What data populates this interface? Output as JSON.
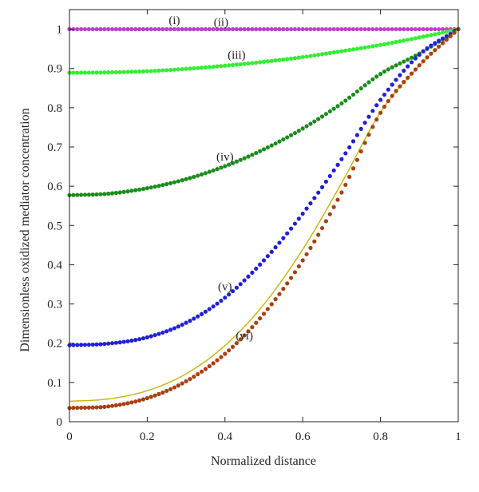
{
  "chart_data": {
    "type": "line",
    "xlabel": "Normalized distance",
    "ylabel": "Dimensionless oxidized mediator concentration",
    "xlim": [
      0,
      1
    ],
    "ylim": [
      0,
      1.05
    ],
    "xticks": [
      "0",
      "0.2",
      "0.4",
      "0.6",
      "0.8",
      "1"
    ],
    "yticks": [
      "0",
      "0.1",
      "0.2",
      "0.3",
      "0.4",
      "0.5",
      "0.6",
      "0.7",
      "0.8",
      "0.9",
      "1"
    ],
    "grid": false,
    "x": [
      0,
      0.1,
      0.2,
      0.3,
      0.4,
      0.5,
      0.6,
      0.7,
      0.8,
      0.9,
      1.0
    ],
    "series": [
      {
        "name": "(i)",
        "style": "dots",
        "color": "#00c0d0",
        "xmax": 0.6,
        "values": [
          1.0,
          1.0,
          1.0,
          1.0,
          1.0,
          1.0,
          1.0,
          1.0,
          1.0,
          1.0,
          1.0
        ]
      },
      {
        "name": "(ii)",
        "style": "dots",
        "color": "#c040c8",
        "values": [
          1.0,
          1.0,
          1.0,
          1.0,
          1.0,
          1.0,
          1.0,
          1.0,
          1.0,
          1.0,
          1.0
        ]
      },
      {
        "name": "(iii)",
        "style": "dots",
        "color": "#33ee33",
        "values": [
          0.889,
          0.89,
          0.893,
          0.899,
          0.907,
          0.917,
          0.929,
          0.944,
          0.96,
          0.979,
          1.0
        ]
      },
      {
        "name": "(iv)",
        "style": "dots",
        "color": "#1a8c1a",
        "values": [
          0.577,
          0.581,
          0.595,
          0.618,
          0.651,
          0.694,
          0.747,
          0.811,
          0.886,
          0.938,
          1.0
        ]
      },
      {
        "name": "(v)",
        "style": "dots",
        "color": "#2020d8",
        "values": [
          0.195,
          0.199,
          0.215,
          0.252,
          0.316,
          0.411,
          0.53,
          0.669,
          0.82,
          0.935,
          1.0
        ]
      },
      {
        "name": "",
        "style": "line",
        "color": "#c8b400",
        "values": [
          0.052,
          0.058,
          0.079,
          0.122,
          0.194,
          0.299,
          0.439,
          0.608,
          0.788,
          0.907,
          1.0
        ]
      },
      {
        "name": "(vi)",
        "style": "dots",
        "color": "#a84010",
        "values": [
          0.035,
          0.039,
          0.06,
          0.103,
          0.173,
          0.275,
          0.411,
          0.584,
          0.787,
          0.908,
          1.0
        ]
      }
    ],
    "annotations": [
      {
        "text": "(i)",
        "x": 0.27,
        "y": 1.013
      },
      {
        "text": "(ii)",
        "x": 0.39,
        "y": 1.008
      },
      {
        "text": "(iii)",
        "x": 0.43,
        "y": 0.925
      },
      {
        "text": "(iv)",
        "x": 0.4,
        "y": 0.665
      },
      {
        "text": "(v)",
        "x": 0.4,
        "y": 0.335
      },
      {
        "text": "(vi)",
        "x": 0.45,
        "y": 0.21
      }
    ]
  }
}
